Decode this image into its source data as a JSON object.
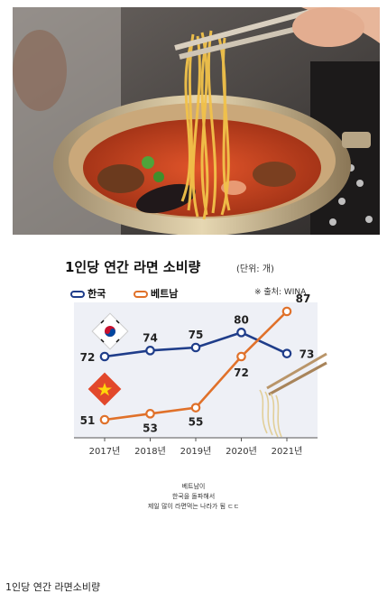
{
  "chart_data": {
    "type": "line",
    "title": "1인당 연간 라면 소비량",
    "unit": "(단위: 개)",
    "source": "※ 출처: WINA",
    "categories": [
      "2017년",
      "2018년",
      "2019년",
      "2020년",
      "2021년"
    ],
    "series": [
      {
        "name": "한국",
        "values": [
          72,
          74,
          75,
          80,
          73
        ],
        "color": "#1f3d8a"
      },
      {
        "name": "베트남",
        "values": [
          51,
          53,
          55,
          72,
          87
        ],
        "color": "#e0712a"
      }
    ],
    "ylim": [
      45,
      90
    ],
    "legend": "top-left",
    "grid": false
  },
  "note_lines": [
    "베트남이",
    "한국을 돌파해서",
    "제일 많이 라면먹는 나라가 됨 ㄷㄷ"
  ],
  "caption": "1인당 연간 라면소비량",
  "colors": {
    "korea": "#1f3d8a",
    "vietnam": "#e0712a",
    "flag_vn": "#e2482b"
  }
}
